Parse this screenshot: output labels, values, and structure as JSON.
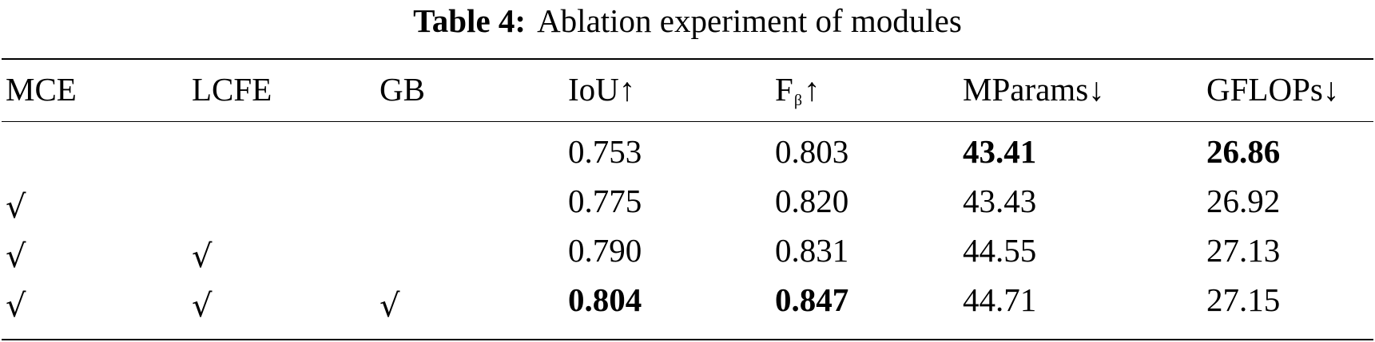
{
  "caption": {
    "label": "Table 4:",
    "title": "Ablation experiment of modules"
  },
  "columns": {
    "mce": "MCE",
    "lcfe": "LCFE",
    "gb": "GB",
    "iou": "IoU↑",
    "fbeta_base": "F",
    "fbeta_sub": "β",
    "fbeta_arrow": "↑",
    "mparams": "MParams↓",
    "gflops": "GFLOPs↓"
  },
  "check_symbol": "√",
  "rows": [
    {
      "mce": false,
      "lcfe": false,
      "gb": false,
      "iou": "0.753",
      "fbeta": "0.803",
      "mparams": "43.41",
      "gflops": "26.86",
      "bold": [
        "mparams",
        "gflops"
      ]
    },
    {
      "mce": true,
      "lcfe": false,
      "gb": false,
      "iou": "0.775",
      "fbeta": "0.820",
      "mparams": "43.43",
      "gflops": "26.92",
      "bold": []
    },
    {
      "mce": true,
      "lcfe": true,
      "gb": false,
      "iou": "0.790",
      "fbeta": "0.831",
      "mparams": "44.55",
      "gflops": "27.13",
      "bold": []
    },
    {
      "mce": true,
      "lcfe": true,
      "gb": true,
      "iou": "0.804",
      "fbeta": "0.847",
      "mparams": "44.71",
      "gflops": "27.15",
      "bold": [
        "iou",
        "fbeta"
      ]
    }
  ]
}
